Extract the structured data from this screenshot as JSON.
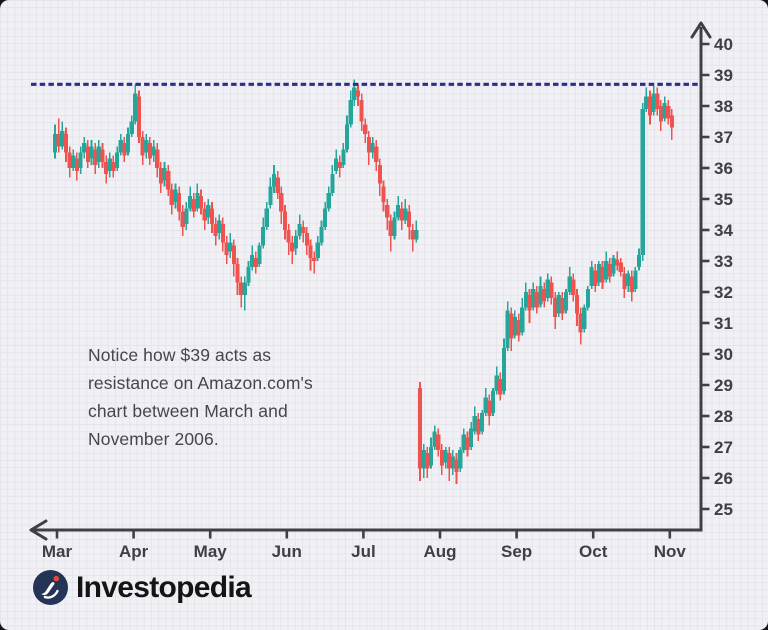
{
  "chart_data": {
    "type": "candlestick",
    "title": "",
    "xlabel": "",
    "ylabel": "",
    "x_ticks": [
      "Mar",
      "Apr",
      "May",
      "Jun",
      "Jul",
      "Aug",
      "Sep",
      "Oct",
      "Nov"
    ],
    "y_ticks": [
      40,
      39,
      38,
      37,
      36,
      35,
      34,
      33,
      32,
      31,
      30,
      29,
      28,
      27,
      26,
      25
    ],
    "ylim": [
      25,
      40
    ],
    "grid": "fine graph paper background",
    "legend": "none",
    "up_color": "#26a69a",
    "down_color": "#ef5350",
    "axis_color": "#3e4044",
    "label_color": "#3e4044",
    "resistance": {
      "value": 38.7,
      "color": "#2c2e87",
      "style": "dashed"
    },
    "candles": [
      [
        36.5,
        37.4,
        36.3,
        37.1
      ],
      [
        37.1,
        37.6,
        36.5,
        36.7
      ],
      [
        36.7,
        37.5,
        36.6,
        37.2
      ],
      [
        37.1,
        37.3,
        36.2,
        36.5
      ],
      [
        36.5,
        36.7,
        35.7,
        36.0
      ],
      [
        36.0,
        36.6,
        35.9,
        36.4
      ],
      [
        36.3,
        36.5,
        35.6,
        35.9
      ],
      [
        36.0,
        36.7,
        35.8,
        36.5
      ],
      [
        36.5,
        37.0,
        36.3,
        36.8
      ],
      [
        36.7,
        36.9,
        36.0,
        36.2
      ],
      [
        36.3,
        36.9,
        36.1,
        36.7
      ],
      [
        36.6,
        36.8,
        35.8,
        36.1
      ],
      [
        36.2,
        36.9,
        36.0,
        36.7
      ],
      [
        36.6,
        36.8,
        36.0,
        36.2
      ],
      [
        36.2,
        36.4,
        35.5,
        35.8
      ],
      [
        35.9,
        36.5,
        35.7,
        36.3
      ],
      [
        36.2,
        36.4,
        35.7,
        35.9
      ],
      [
        36.0,
        36.7,
        35.9,
        36.5
      ],
      [
        36.5,
        37.1,
        36.4,
        36.9
      ],
      [
        36.8,
        37.0,
        36.2,
        36.4
      ],
      [
        36.5,
        37.3,
        36.4,
        37.1
      ],
      [
        37.1,
        37.7,
        37.0,
        37.5
      ],
      [
        37.5,
        38.7,
        37.4,
        38.4
      ],
      [
        38.3,
        38.5,
        36.8,
        37.0
      ],
      [
        37.0,
        37.2,
        36.1,
        36.4
      ],
      [
        36.5,
        37.1,
        36.3,
        36.9
      ],
      [
        36.8,
        37.0,
        36.1,
        36.3
      ],
      [
        36.4,
        36.9,
        36.2,
        36.7
      ],
      [
        36.6,
        36.8,
        35.7,
        36.0
      ],
      [
        36.0,
        36.2,
        35.2,
        35.5
      ],
      [
        35.6,
        36.2,
        35.4,
        36.0
      ],
      [
        35.9,
        36.1,
        35.1,
        35.3
      ],
      [
        35.3,
        35.5,
        34.5,
        34.8
      ],
      [
        34.9,
        35.5,
        34.7,
        35.3
      ],
      [
        35.2,
        35.4,
        34.3,
        34.6
      ],
      [
        34.6,
        34.8,
        33.8,
        34.1
      ],
      [
        34.2,
        34.9,
        34.0,
        34.7
      ],
      [
        34.7,
        35.4,
        34.6,
        35.1
      ],
      [
        35.0,
        35.2,
        34.4,
        34.6
      ],
      [
        34.7,
        35.5,
        34.6,
        35.2
      ],
      [
        35.1,
        35.3,
        34.5,
        34.7
      ],
      [
        34.7,
        34.9,
        34.0,
        34.3
      ],
      [
        34.4,
        35.0,
        34.2,
        34.8
      ],
      [
        34.7,
        34.9,
        33.9,
        34.2
      ],
      [
        34.2,
        34.4,
        33.5,
        33.8
      ],
      [
        33.9,
        34.5,
        33.7,
        34.3
      ],
      [
        34.2,
        34.4,
        33.3,
        33.6
      ],
      [
        33.6,
        33.8,
        32.9,
        33.2
      ],
      [
        33.3,
        33.9,
        33.1,
        33.6
      ],
      [
        33.5,
        33.7,
        32.5,
        32.9
      ],
      [
        32.9,
        33.1,
        31.9,
        32.3
      ],
      [
        32.3,
        32.5,
        31.5,
        31.9
      ],
      [
        31.9,
        32.5,
        31.4,
        32.3
      ],
      [
        32.3,
        33.0,
        32.2,
        32.8
      ],
      [
        32.8,
        33.5,
        32.7,
        33.2
      ],
      [
        33.1,
        33.3,
        32.6,
        32.8
      ],
      [
        32.9,
        33.6,
        32.8,
        33.5
      ],
      [
        33.5,
        34.4,
        33.4,
        34.1
      ],
      [
        34.1,
        34.9,
        34.0,
        34.7
      ],
      [
        34.8,
        35.7,
        34.7,
        35.4
      ],
      [
        35.4,
        36.1,
        35.2,
        35.8
      ],
      [
        35.7,
        35.9,
        35.0,
        35.2
      ],
      [
        35.2,
        35.4,
        34.2,
        34.6
      ],
      [
        34.6,
        34.8,
        33.7,
        34.0
      ],
      [
        34.0,
        34.2,
        33.2,
        33.6
      ],
      [
        33.6,
        33.8,
        32.9,
        33.3
      ],
      [
        33.4,
        34.0,
        33.2,
        33.8
      ],
      [
        33.8,
        34.5,
        33.7,
        34.2
      ],
      [
        34.1,
        34.3,
        33.6,
        33.9
      ],
      [
        33.9,
        34.1,
        33.2,
        33.5
      ],
      [
        33.5,
        33.7,
        32.7,
        33.1
      ],
      [
        33.1,
        33.3,
        32.6,
        33.0
      ],
      [
        33.1,
        33.8,
        33.0,
        33.6
      ],
      [
        33.6,
        34.3,
        33.5,
        34.1
      ],
      [
        34.1,
        34.9,
        34.0,
        34.7
      ],
      [
        34.7,
        35.4,
        34.6,
        35.2
      ],
      [
        35.2,
        36.1,
        35.1,
        35.8
      ],
      [
        35.9,
        36.6,
        35.8,
        36.3
      ],
      [
        36.2,
        36.4,
        35.7,
        36.0
      ],
      [
        36.1,
        36.8,
        36.0,
        36.6
      ],
      [
        36.6,
        37.7,
        36.5,
        37.4
      ],
      [
        37.4,
        38.5,
        37.3,
        38.2
      ],
      [
        38.2,
        38.85,
        38.0,
        38.6
      ],
      [
        38.5,
        38.7,
        38.0,
        38.3
      ],
      [
        38.2,
        38.4,
        37.2,
        37.5
      ],
      [
        37.4,
        37.6,
        36.8,
        37.1
      ],
      [
        37.0,
        37.2,
        36.1,
        36.5
      ],
      [
        36.5,
        37.0,
        36.3,
        36.8
      ],
      [
        36.7,
        36.9,
        35.9,
        36.2
      ],
      [
        36.1,
        36.3,
        35.1,
        35.5
      ],
      [
        35.4,
        35.6,
        34.6,
        34.9
      ],
      [
        34.8,
        35.0,
        34.0,
        34.4
      ],
      [
        34.3,
        34.5,
        33.3,
        33.8
      ],
      [
        33.8,
        34.6,
        33.7,
        34.4
      ],
      [
        34.4,
        35.1,
        34.3,
        34.8
      ],
      [
        34.7,
        34.9,
        34.0,
        34.3
      ],
      [
        34.3,
        35.0,
        34.2,
        34.7
      ],
      [
        34.6,
        34.8,
        33.7,
        34.1
      ],
      [
        34.0,
        34.2,
        33.3,
        33.7
      ],
      [
        33.7,
        34.3,
        33.6,
        34.0
      ],
      [
        28.9,
        29.1,
        25.9,
        26.3
      ],
      [
        26.3,
        27.1,
        26.0,
        26.9
      ],
      [
        26.8,
        27.0,
        26.0,
        26.3
      ],
      [
        26.4,
        27.3,
        26.3,
        27.0
      ],
      [
        27.0,
        27.7,
        26.9,
        27.5
      ],
      [
        27.4,
        27.6,
        26.7,
        26.9
      ],
      [
        26.9,
        27.1,
        26.1,
        26.4
      ],
      [
        26.5,
        27.0,
        26.3,
        26.9
      ],
      [
        26.8,
        27.0,
        25.9,
        26.3
      ],
      [
        26.3,
        26.9,
        26.1,
        26.7
      ],
      [
        26.6,
        26.8,
        25.8,
        26.2
      ],
      [
        26.3,
        27.0,
        26.2,
        26.9
      ],
      [
        26.9,
        27.6,
        26.8,
        27.4
      ],
      [
        27.3,
        27.5,
        26.7,
        26.9
      ],
      [
        27.0,
        27.8,
        26.9,
        27.6
      ],
      [
        27.5,
        28.3,
        27.4,
        28.0
      ],
      [
        27.9,
        28.1,
        27.2,
        27.4
      ],
      [
        27.5,
        28.2,
        27.4,
        28.1
      ],
      [
        28.1,
        28.9,
        28.0,
        28.6
      ],
      [
        28.5,
        28.7,
        27.7,
        28.0
      ],
      [
        28.1,
        28.9,
        28.0,
        28.8
      ],
      [
        28.8,
        29.6,
        28.7,
        29.3
      ],
      [
        29.2,
        29.4,
        28.5,
        28.7
      ],
      [
        28.8,
        30.5,
        28.7,
        30.2
      ],
      [
        30.2,
        31.7,
        30.1,
        31.4
      ],
      [
        31.3,
        31.5,
        30.1,
        30.5
      ],
      [
        30.6,
        31.4,
        30.5,
        31.2
      ],
      [
        31.1,
        31.3,
        30.4,
        30.6
      ],
      [
        30.7,
        31.8,
        30.6,
        31.5
      ],
      [
        31.5,
        32.3,
        31.4,
        32.0
      ],
      [
        31.9,
        32.1,
        31.0,
        31.4
      ],
      [
        31.5,
        32.3,
        31.4,
        32.1
      ],
      [
        32.0,
        32.2,
        31.3,
        31.5
      ],
      [
        31.6,
        32.5,
        31.5,
        32.2
      ],
      [
        32.1,
        32.3,
        31.5,
        31.7
      ],
      [
        31.8,
        32.6,
        31.7,
        32.4
      ],
      [
        32.3,
        32.5,
        31.6,
        31.8
      ],
      [
        31.8,
        32.0,
        30.8,
        31.2
      ],
      [
        31.3,
        32.0,
        31.2,
        31.9
      ],
      [
        31.8,
        32.0,
        31.1,
        31.3
      ],
      [
        31.4,
        32.1,
        31.3,
        32.0
      ],
      [
        32.0,
        32.8,
        31.9,
        32.5
      ],
      [
        32.4,
        32.6,
        31.7,
        31.9
      ],
      [
        31.9,
        32.1,
        30.9,
        31.3
      ],
      [
        31.3,
        31.5,
        30.3,
        30.7
      ],
      [
        30.8,
        31.6,
        30.7,
        31.5
      ],
      [
        31.5,
        32.2,
        31.4,
        32.1
      ],
      [
        32.2,
        33.0,
        32.1,
        32.8
      ],
      [
        32.7,
        32.9,
        32.0,
        32.2
      ],
      [
        32.3,
        33.0,
        32.2,
        32.9
      ],
      [
        32.8,
        33.0,
        32.1,
        32.3
      ],
      [
        32.4,
        33.3,
        32.3,
        33.0
      ],
      [
        32.9,
        33.1,
        32.3,
        32.5
      ],
      [
        32.6,
        33.2,
        32.5,
        33.1
      ],
      [
        33.05,
        33.3,
        32.7,
        32.85
      ],
      [
        32.95,
        33.1,
        32.5,
        32.65
      ],
      [
        32.6,
        32.8,
        31.8,
        32.1
      ],
      [
        32.2,
        32.7,
        32.0,
        32.6
      ],
      [
        32.5,
        32.7,
        31.7,
        32.0
      ],
      [
        32.1,
        32.8,
        32.0,
        32.7
      ],
      [
        32.8,
        33.4,
        32.7,
        33.2
      ],
      [
        33.2,
        38.1,
        33.0,
        37.9
      ],
      [
        37.9,
        38.6,
        37.8,
        38.3
      ],
      [
        38.3,
        38.5,
        37.4,
        37.7
      ],
      [
        37.8,
        38.65,
        37.7,
        38.4
      ],
      [
        38.4,
        38.6,
        37.7,
        37.9
      ],
      [
        38.0,
        38.2,
        37.2,
        37.5
      ],
      [
        37.6,
        38.3,
        37.5,
        38.1
      ],
      [
        38.0,
        38.2,
        37.4,
        37.6
      ],
      [
        37.7,
        37.9,
        36.9,
        37.3
      ]
    ]
  },
  "annotation": {
    "lines": [
      "Notice how $39 acts as",
      "resistance on Amazon.com's",
      "chart between March and",
      "November 2006."
    ]
  },
  "logo": {
    "text": "Investopedia",
    "circle_color": "#233457",
    "dot_color": "#e8472f",
    "swoosh_color": "#ffffff"
  }
}
